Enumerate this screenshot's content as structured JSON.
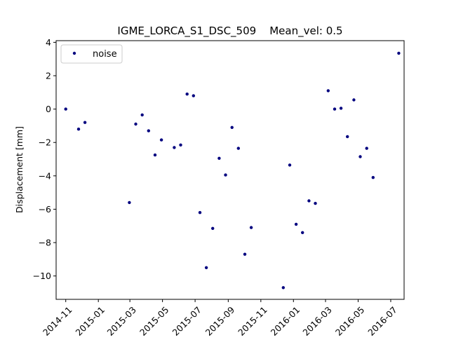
{
  "chart_data": {
    "type": "scatter",
    "title": "IGME_LORCA_S1_DSC_509    Mean_vel: 0.5",
    "xlabel": "",
    "ylabel": "Displacement [mm]",
    "xlim": [
      "2014-10-14",
      "2016-07-26"
    ],
    "ylim": [
      -11.4,
      4.1
    ],
    "x_ticks": [
      "2014-11",
      "2015-01",
      "2015-03",
      "2015-05",
      "2015-07",
      "2015-09",
      "2015-11",
      "2016-01",
      "2016-03",
      "2016-05",
      "2016-07"
    ],
    "y_ticks": [
      4,
      2,
      0,
      -2,
      -4,
      -6,
      -8,
      -10
    ],
    "grid": false,
    "legend": {
      "position": "top-left",
      "entries": [
        "noise"
      ]
    },
    "colors": {
      "marker": "#00007f",
      "axes": "#000000",
      "background": "#ffffff"
    },
    "series": [
      {
        "name": "noise",
        "x": [
          "2014-11-01",
          "2014-11-25",
          "2014-12-07",
          "2015-02-28",
          "2015-03-12",
          "2015-03-24",
          "2015-04-05",
          "2015-04-17",
          "2015-04-29",
          "2015-05-23",
          "2015-06-04",
          "2015-06-16",
          "2015-06-28",
          "2015-07-10",
          "2015-07-22",
          "2015-08-03",
          "2015-08-15",
          "2015-08-27",
          "2015-09-08",
          "2015-09-20",
          "2015-10-02",
          "2015-10-14",
          "2015-12-13",
          "2015-12-25",
          "2016-01-06",
          "2016-01-18",
          "2016-01-30",
          "2016-02-11",
          "2016-03-06",
          "2016-03-18",
          "2016-03-30",
          "2016-04-11",
          "2016-04-23",
          "2016-05-05",
          "2016-05-17",
          "2016-05-29",
          "2016-07-16"
        ],
        "y": [
          0.0,
          -1.2,
          -0.8,
          -5.6,
          -0.9,
          -0.35,
          -1.3,
          -2.75,
          -1.85,
          -2.3,
          -2.15,
          0.9,
          0.8,
          -6.2,
          -9.5,
          -7.15,
          -2.95,
          -3.95,
          -1.1,
          -2.35,
          -8.7,
          -7.1,
          -10.7,
          -3.35,
          -6.9,
          -7.4,
          -5.5,
          -5.65,
          1.1,
          0.0,
          0.05,
          -1.65,
          0.55,
          -2.85,
          -2.35,
          -4.1,
          3.35
        ]
      }
    ]
  }
}
